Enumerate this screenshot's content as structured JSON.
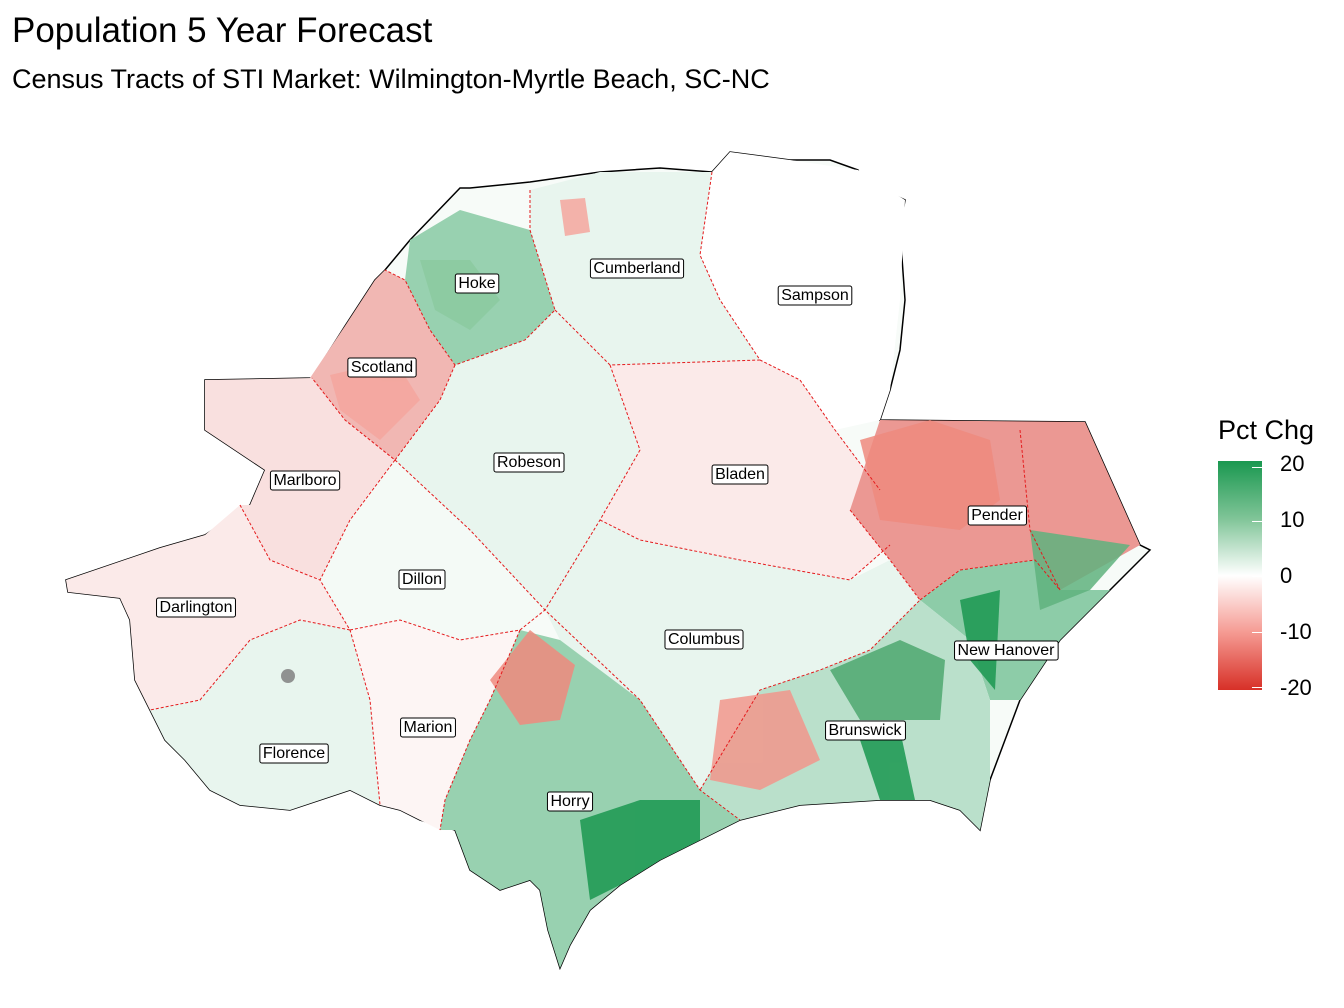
{
  "header": {
    "title": "Population 5 Year Forecast",
    "subtitle": "Census Tracts of STI Market: Wilmington-Myrtle Beach, SC-NC"
  },
  "legend": {
    "title": "Pct Chg",
    "ticks": [
      "20",
      "10",
      "0",
      "-10",
      "-20"
    ],
    "range": [
      -20,
      20
    ],
    "colors": {
      "high": "#1a9850",
      "mid": "#ffffff",
      "low": "#d73027"
    }
  },
  "counties": [
    {
      "name": "Hoke",
      "pct": 9
    },
    {
      "name": "Cumberland",
      "pct": 2
    },
    {
      "name": "Sampson",
      "pct": 0
    },
    {
      "name": "Scotland",
      "pct": -7
    },
    {
      "name": "Robeson",
      "pct": 2
    },
    {
      "name": "Bladen",
      "pct": -2
    },
    {
      "name": "Marlboro",
      "pct": -3
    },
    {
      "name": "Pender",
      "pct": -10
    },
    {
      "name": "Dillon",
      "pct": 1
    },
    {
      "name": "Darlington",
      "pct": -2
    },
    {
      "name": "Columbus",
      "pct": 2
    },
    {
      "name": "New Hanover",
      "pct": 10
    },
    {
      "name": "Florence",
      "pct": 2
    },
    {
      "name": "Marion",
      "pct": -1
    },
    {
      "name": "Brunswick",
      "pct": 6
    },
    {
      "name": "Horry",
      "pct": 9
    }
  ]
}
